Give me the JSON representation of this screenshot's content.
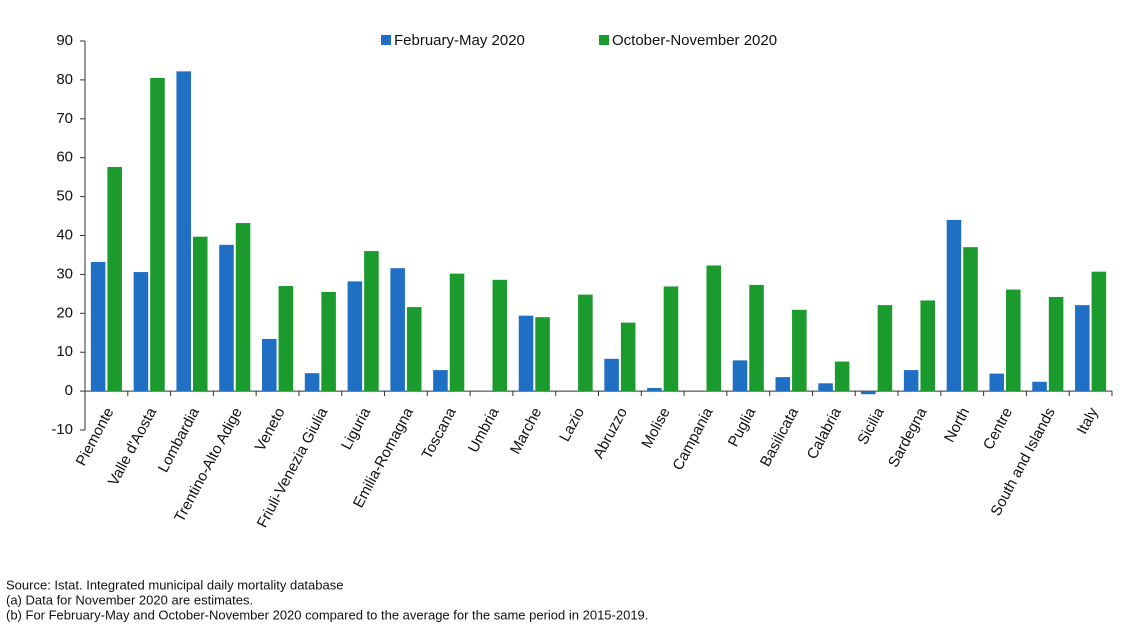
{
  "chart_data": {
    "type": "bar",
    "categories": [
      "Piemonte",
      "Valle d'Aosta",
      "Lombardia",
      "Trentino-Alto Adige",
      "Veneto",
      "Friuli-Venezia Giulia",
      "Liguria",
      "Emilia-Romagna",
      "Toscana",
      "Umbria",
      "Marche",
      "Lazio",
      "Abruzzo",
      "Molise",
      "Campania",
      "Puglia",
      "Basilicata",
      "Calabria",
      "Sicilia",
      "Sardegna",
      "North",
      "Centre",
      "South and Islands",
      "Italy"
    ],
    "series": [
      {
        "name": "February-May 2020",
        "color": "#1f6fc4",
        "values": [
          33.2,
          30.6,
          82.2,
          37.6,
          13.4,
          4.6,
          28.2,
          31.6,
          5.4,
          0,
          19.4,
          0,
          8.3,
          0.8,
          0,
          7.9,
          3.6,
          2,
          -0.8,
          5.4,
          44,
          4.5,
          2.4,
          22.1
        ]
      },
      {
        "name": "October-November 2020",
        "color": "#1b9a2e",
        "values": [
          57.6,
          80.5,
          39.7,
          43.2,
          27,
          25.5,
          36,
          21.6,
          30.2,
          28.6,
          19,
          24.8,
          17.6,
          26.9,
          32.3,
          27.3,
          20.9,
          7.6,
          22.1,
          23.3,
          37,
          26.1,
          24.2,
          30.7
        ]
      }
    ],
    "ylim": [
      -10,
      90
    ],
    "yticks": [
      -10,
      0,
      10,
      20,
      30,
      40,
      50,
      60,
      70,
      80,
      90
    ],
    "notes": [
      "Source: Istat. Integrated municipal daily mortality database",
      "(a) Data for November 2020 are estimates.",
      "(b) For February-May and October-November 2020 compared to the average for the same period in 2015-2019."
    ]
  }
}
